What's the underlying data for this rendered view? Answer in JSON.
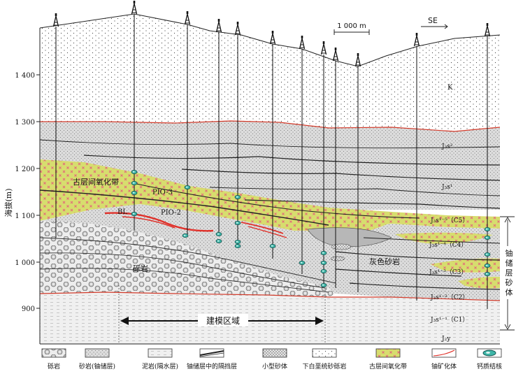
{
  "compass": {
    "label": "SE"
  },
  "scale_bar": {
    "label": "1 000 m"
  },
  "y_axis": {
    "label": "海拔(m)",
    "ticks": [
      "1 400",
      "1 300",
      "1 200",
      "1 100",
      "1 000",
      "900"
    ]
  },
  "layers": {
    "k": "K",
    "j3s2": "J₃s²",
    "j3s1": "J₃s¹",
    "c5": "J₃s¹⁻⁵（C5）",
    "c4": "J₃s¹⁻⁴（C4）",
    "c3": "J₃s¹⁻³（C3）",
    "c2": "J₃s¹⁻²（C2）",
    "c1": "J₃s¹⁻¹（C1）",
    "j2y": "J₂y"
  },
  "annotations": {
    "oxidation_zone": "古层间氧化带",
    "pio3": "PIO-3",
    "pio2": "PIO-2",
    "bl": "BL",
    "conglomerate": "砾岩",
    "grey_sandstone": "灰色砂岩",
    "modeling_area": "建模区域",
    "uranium_sandbody": "铀储层砂体"
  },
  "legend": [
    {
      "swatch": "conglomerate",
      "label": "砾岩"
    },
    {
      "swatch": "sandstone",
      "label": "砂岩(铀储层)"
    },
    {
      "swatch": "mudstone",
      "label": "泥岩(隔水层)"
    },
    {
      "swatch": "barrier",
      "label": "铀储层中的隔挡层"
    },
    {
      "swatch": "small_sand",
      "label": "小型砂体"
    },
    {
      "swatch": "chalk_gravel",
      "label": "下白垩统砂砾岩"
    },
    {
      "swatch": "oxidation",
      "label": "古层间氧化带"
    },
    {
      "swatch": "ore",
      "label": "铀矿化体"
    },
    {
      "swatch": "nodule",
      "label": "钙质结核"
    }
  ]
}
